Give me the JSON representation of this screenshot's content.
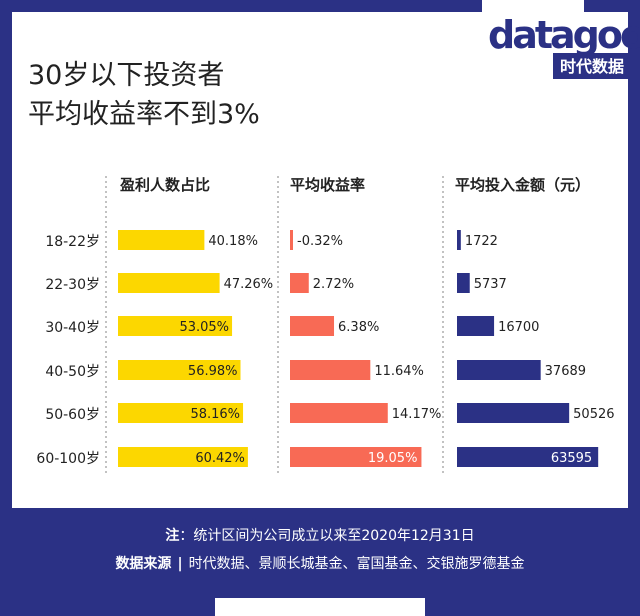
{
  "title_lines": [
    "30岁以下投资者",
    "平均收益率不到3%"
  ],
  "logo": {
    "text": "datagoo",
    "sub": "时代数据"
  },
  "colors": {
    "navy": "#2b3185",
    "yellow": "#fcd700",
    "coral": "#f86a55",
    "text": "#222222"
  },
  "chart_data": {
    "type": "bar",
    "categories": [
      "18-22岁",
      "22-30岁",
      "30-40岁",
      "40-50岁",
      "50-60岁",
      "60-100岁"
    ],
    "series": [
      {
        "name": "盈利人数占比",
        "values": [
          40.18,
          47.26,
          53.05,
          56.98,
          58.16,
          60.42
        ],
        "labels": [
          "40.18%",
          "47.26%",
          "53.05%",
          "56.98%",
          "58.16%",
          "60.42%"
        ]
      },
      {
        "name": "平均收益率",
        "values": [
          -0.32,
          2.72,
          6.38,
          11.64,
          14.17,
          19.05
        ],
        "labels": [
          "-0.32%",
          "2.72%",
          "6.38%",
          "11.64%",
          "14.17%",
          "19.05%"
        ]
      },
      {
        "name": "平均投入金额（元）",
        "values": [
          1722,
          5737,
          16700,
          37689,
          50526,
          63595
        ],
        "labels": [
          "1722",
          "5737",
          "16700",
          "37689",
          "50526",
          "63595"
        ]
      }
    ]
  },
  "footer": {
    "note_label": "注",
    "note_text": "：统计区间为公司成立以来至2020年12月31日",
    "source_label": "数据来源",
    "source_text": "时代数据、景顺长城基金、富国基金、交银施罗德基金"
  }
}
